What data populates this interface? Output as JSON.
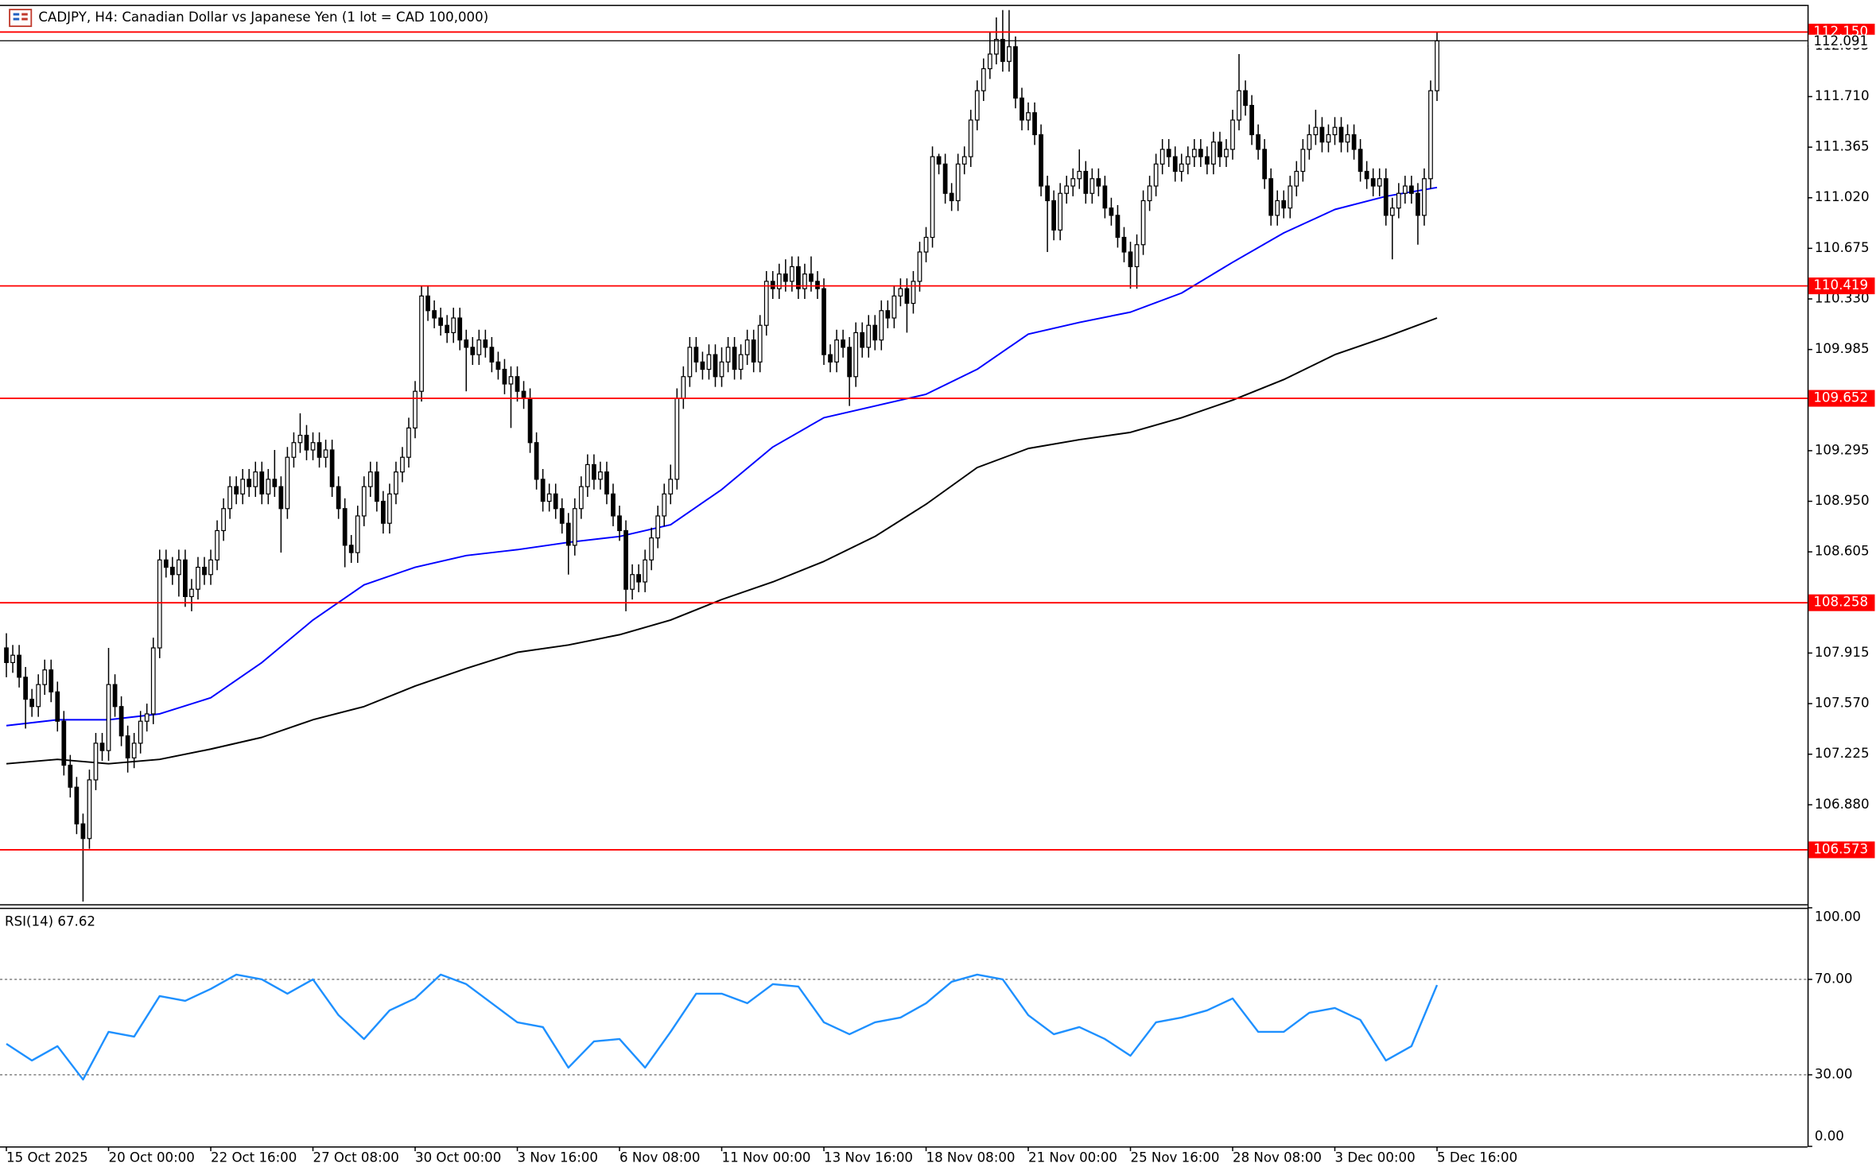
{
  "chart_data": {
    "type": "candlestick",
    "title": "CADJPY, H4:  Canadian Dollar vs Japanese Yen (1 lot = CAD 100,000)",
    "bull_color": "#ffffff",
    "bear_color": "#000000",
    "open": [
      107.95,
      107.85,
      107.9,
      107.75,
      107.6,
      107.55,
      107.7,
      107.8,
      107.65,
      107.45,
      107.15,
      107.0,
      106.75,
      106.65,
      107.05,
      107.3,
      107.25,
      107.7,
      107.55,
      107.35,
      107.2,
      107.3,
      107.45,
      107.5,
      107.95,
      108.55,
      108.5,
      108.45,
      108.55,
      108.3,
      108.35,
      108.5,
      108.45,
      108.55,
      108.75,
      108.9,
      109.05,
      109.0,
      109.1,
      109.05,
      109.15,
      109.0,
      109.1,
      109.05,
      108.9,
      109.25,
      109.35,
      109.4,
      109.3,
      109.35,
      109.25,
      109.3,
      109.05,
      108.9,
      108.65,
      108.6,
      108.85,
      109.05,
      109.15,
      108.95,
      108.8,
      109.0,
      109.15,
      109.25,
      109.45,
      109.7,
      110.35,
      110.25,
      110.2,
      110.15,
      110.1,
      110.2,
      110.05,
      110.0,
      109.95,
      110.05,
      110.0,
      109.9,
      109.85,
      109.75,
      109.8,
      109.7,
      109.65,
      109.35,
      109.1,
      108.95,
      109.0,
      108.9,
      108.8,
      108.65,
      108.9,
      109.05,
      109.2,
      109.1,
      109.15,
      109.0,
      108.85,
      108.75,
      108.35,
      108.45,
      108.4,
      108.55,
      108.7,
      108.85,
      109.0,
      109.1,
      109.65,
      109.8,
      110.0,
      109.9,
      109.85,
      109.95,
      109.8,
      109.9,
      110.0,
      109.85,
      109.95,
      110.05,
      109.9,
      110.15,
      110.45,
      110.4,
      110.5,
      110.45,
      110.55,
      110.4,
      110.5,
      110.45,
      110.4,
      109.95,
      109.9,
      110.05,
      110.0,
      109.8,
      110.1,
      110.0,
      110.15,
      110.05,
      110.25,
      110.2,
      110.35,
      110.4,
      110.3,
      110.45,
      110.65,
      110.75,
      111.3,
      111.25,
      111.05,
      111.0,
      111.25,
      111.3,
      111.55,
      111.75,
      111.9,
      112.0,
      112.1,
      111.95,
      112.05,
      111.7,
      111.55,
      111.6,
      111.45,
      111.1,
      111.0,
      110.8,
      111.05,
      111.1,
      111.15,
      111.2,
      111.05,
      111.15,
      111.1,
      110.95,
      110.9,
      110.75,
      110.65,
      110.55,
      110.7,
      111.0,
      111.1,
      111.25,
      111.35,
      111.3,
      111.2,
      111.25,
      111.3,
      111.35,
      111.3,
      111.25,
      111.4,
      111.3,
      111.35,
      111.55,
      111.75,
      111.65,
      111.45,
      111.35,
      111.15,
      110.9,
      111.0,
      110.95,
      111.1,
      111.2,
      111.35,
      111.45,
      111.5,
      111.4,
      111.45,
      111.5,
      111.4,
      111.45,
      111.35,
      111.2,
      111.15,
      111.1,
      111.15,
      110.9,
      110.95,
      111.05,
      111.1,
      111.05,
      110.9,
      111.15,
      111.75
    ],
    "high": [
      108.05,
      107.97,
      107.97,
      107.82,
      107.67,
      107.77,
      107.87,
      107.87,
      107.72,
      107.52,
      107.22,
      107.07,
      106.82,
      107.12,
      107.37,
      107.37,
      107.95,
      107.77,
      107.62,
      107.42,
      107.37,
      107.52,
      107.57,
      108.02,
      108.62,
      108.62,
      108.57,
      108.62,
      108.62,
      108.42,
      108.57,
      108.57,
      108.62,
      108.82,
      108.97,
      109.12,
      109.12,
      109.17,
      109.17,
      109.22,
      109.22,
      109.17,
      109.3,
      109.12,
      109.32,
      109.42,
      109.55,
      109.47,
      109.42,
      109.42,
      109.37,
      109.37,
      109.12,
      108.97,
      108.72,
      108.92,
      109.12,
      109.22,
      109.22,
      109.02,
      109.07,
      109.22,
      109.32,
      109.52,
      109.77,
      110.42,
      110.42,
      110.32,
      110.27,
      110.22,
      110.27,
      110.27,
      110.12,
      110.07,
      110.12,
      110.12,
      110.07,
      109.97,
      109.92,
      109.87,
      109.87,
      109.77,
      109.72,
      109.42,
      109.17,
      109.07,
      109.07,
      108.97,
      108.87,
      108.97,
      109.12,
      109.27,
      109.27,
      109.22,
      109.22,
      109.07,
      108.92,
      108.82,
      108.52,
      108.52,
      108.62,
      108.77,
      108.92,
      109.07,
      109.2,
      109.72,
      109.87,
      110.07,
      110.07,
      109.97,
      110.02,
      110.02,
      110.0,
      110.07,
      110.07,
      110.02,
      110.12,
      110.12,
      110.22,
      110.52,
      110.52,
      110.57,
      110.6,
      110.62,
      110.62,
      110.57,
      110.62,
      110.52,
      110.47,
      110.02,
      110.12,
      110.12,
      110.07,
      110.17,
      110.17,
      110.22,
      110.22,
      110.32,
      110.32,
      110.42,
      110.47,
      110.47,
      110.52,
      110.72,
      110.82,
      111.37,
      111.32,
      111.32,
      111.12,
      111.32,
      111.37,
      111.62,
      111.82,
      111.97,
      112.15,
      112.25,
      112.3,
      112.3,
      112.12,
      111.77,
      111.67,
      111.67,
      111.52,
      111.17,
      111.07,
      111.12,
      111.17,
      111.22,
      111.35,
      111.27,
      111.22,
      111.22,
      111.17,
      111.02,
      110.97,
      110.82,
      110.72,
      110.77,
      111.07,
      111.17,
      111.32,
      111.42,
      111.42,
      111.37,
      111.32,
      111.37,
      111.42,
      111.42,
      111.37,
      111.47,
      111.47,
      111.42,
      111.62,
      112.0,
      111.82,
      111.72,
      111.52,
      111.42,
      111.22,
      111.07,
      111.07,
      111.17,
      111.27,
      111.42,
      111.52,
      111.62,
      111.57,
      111.52,
      111.57,
      111.57,
      111.52,
      111.52,
      111.42,
      111.27,
      111.22,
      111.22,
      111.22,
      111.02,
      111.12,
      111.17,
      111.17,
      111.12,
      111.22,
      111.82,
      112.15
    ],
    "low": [
      107.75,
      107.78,
      107.68,
      107.4,
      107.48,
      107.48,
      107.63,
      107.58,
      107.38,
      107.08,
      106.93,
      106.68,
      106.22,
      106.58,
      106.98,
      107.18,
      107.18,
      107.48,
      107.28,
      107.1,
      107.13,
      107.23,
      107.38,
      107.43,
      107.88,
      108.43,
      108.38,
      108.3,
      108.23,
      108.2,
      108.28,
      108.38,
      108.38,
      108.48,
      108.68,
      108.83,
      108.93,
      108.93,
      108.98,
      108.98,
      108.93,
      108.93,
      108.98,
      108.6,
      108.83,
      109.18,
      109.28,
      109.23,
      109.23,
      109.18,
      109.18,
      108.98,
      108.83,
      108.5,
      108.53,
      108.53,
      108.78,
      108.98,
      108.88,
      108.73,
      108.73,
      108.93,
      109.08,
      109.18,
      109.38,
      109.63,
      110.18,
      110.13,
      110.08,
      110.03,
      110.03,
      109.98,
      109.7,
      109.88,
      109.88,
      109.93,
      109.83,
      109.78,
      109.68,
      109.45,
      109.63,
      109.58,
      109.28,
      109.03,
      108.88,
      108.88,
      108.83,
      108.73,
      108.45,
      108.58,
      108.83,
      108.98,
      109.03,
      109.03,
      108.93,
      108.78,
      108.68,
      108.2,
      108.28,
      108.33,
      108.33,
      108.48,
      108.63,
      108.78,
      108.93,
      109.03,
      109.58,
      109.73,
      109.83,
      109.78,
      109.78,
      109.73,
      109.73,
      109.83,
      109.78,
      109.78,
      109.88,
      109.83,
      109.83,
      110.08,
      110.33,
      110.33,
      110.38,
      110.38,
      110.33,
      110.33,
      110.38,
      110.33,
      109.88,
      109.83,
      109.83,
      109.93,
      109.6,
      109.73,
      109.93,
      109.93,
      109.98,
      109.98,
      110.13,
      110.13,
      110.28,
      110.1,
      110.23,
      110.38,
      110.58,
      110.68,
      111.18,
      110.98,
      110.93,
      110.93,
      111.18,
      111.23,
      111.48,
      111.68,
      111.83,
      111.93,
      111.88,
      111.88,
      111.63,
      111.48,
      111.48,
      111.38,
      111.03,
      110.65,
      110.73,
      110.73,
      110.98,
      111.03,
      111.08,
      110.98,
      110.98,
      111.03,
      110.88,
      110.83,
      110.68,
      110.58,
      110.4,
      110.4,
      110.63,
      110.93,
      111.03,
      111.18,
      111.23,
      111.13,
      111.13,
      111.18,
      111.23,
      111.23,
      111.18,
      111.18,
      111.23,
      111.23,
      111.28,
      111.48,
      111.58,
      111.38,
      111.28,
      111.08,
      110.83,
      110.83,
      110.88,
      110.88,
      111.03,
      111.13,
      111.28,
      111.38,
      111.33,
      111.33,
      111.38,
      111.33,
      111.33,
      111.28,
      111.13,
      111.08,
      111.03,
      111.03,
      110.83,
      110.6,
      110.88,
      110.98,
      110.98,
      110.7,
      110.83,
      111.08,
      111.68
    ],
    "close": [
      107.85,
      107.9,
      107.75,
      107.6,
      107.55,
      107.7,
      107.8,
      107.65,
      107.45,
      107.15,
      107.0,
      106.75,
      106.65,
      107.05,
      107.3,
      107.25,
      107.7,
      107.55,
      107.35,
      107.2,
      107.3,
      107.45,
      107.5,
      107.95,
      108.55,
      108.5,
      108.45,
      108.55,
      108.3,
      108.35,
      108.5,
      108.45,
      108.55,
      108.75,
      108.9,
      109.05,
      109.0,
      109.1,
      109.05,
      109.15,
      109.0,
      109.1,
      109.05,
      108.9,
      109.25,
      109.35,
      109.4,
      109.3,
      109.35,
      109.25,
      109.3,
      109.05,
      108.9,
      108.65,
      108.6,
      108.85,
      109.05,
      109.15,
      108.95,
      108.8,
      109.0,
      109.15,
      109.25,
      109.45,
      109.7,
      110.35,
      110.25,
      110.2,
      110.15,
      110.1,
      110.2,
      110.05,
      110.0,
      109.95,
      110.05,
      110.0,
      109.9,
      109.85,
      109.75,
      109.8,
      109.7,
      109.65,
      109.35,
      109.1,
      108.95,
      109.0,
      108.9,
      108.8,
      108.65,
      108.9,
      109.05,
      109.2,
      109.1,
      109.15,
      109.0,
      108.85,
      108.75,
      108.35,
      108.45,
      108.4,
      108.55,
      108.7,
      108.85,
      109.0,
      109.1,
      109.65,
      109.8,
      110.0,
      109.9,
      109.85,
      109.95,
      109.8,
      109.9,
      110.0,
      109.85,
      109.95,
      110.05,
      109.9,
      110.15,
      110.45,
      110.4,
      110.5,
      110.45,
      110.55,
      110.4,
      110.5,
      110.45,
      110.4,
      109.95,
      109.9,
      110.05,
      110.0,
      109.8,
      110.1,
      110.0,
      110.15,
      110.05,
      110.25,
      110.2,
      110.35,
      110.4,
      110.3,
      110.45,
      110.65,
      110.75,
      111.3,
      111.25,
      111.05,
      111.0,
      111.25,
      111.3,
      111.55,
      111.75,
      111.9,
      112.0,
      112.1,
      111.95,
      112.05,
      111.7,
      111.55,
      111.6,
      111.45,
      111.1,
      111.0,
      110.8,
      111.05,
      111.1,
      111.15,
      111.2,
      111.05,
      111.15,
      111.1,
      110.95,
      110.9,
      110.75,
      110.65,
      110.55,
      110.7,
      111.0,
      111.1,
      111.25,
      111.35,
      111.3,
      111.2,
      111.25,
      111.3,
      111.35,
      111.3,
      111.25,
      111.4,
      111.3,
      111.35,
      111.55,
      111.75,
      111.65,
      111.45,
      111.35,
      111.15,
      110.9,
      111.0,
      110.95,
      111.1,
      111.2,
      111.35,
      111.45,
      111.5,
      111.4,
      111.45,
      111.5,
      111.4,
      111.45,
      111.35,
      111.2,
      111.15,
      111.1,
      111.15,
      110.9,
      110.95,
      111.05,
      111.1,
      111.05,
      110.9,
      111.15,
      111.75,
      112.091
    ],
    "xlim": [
      -1,
      282
    ],
    "xticks": [
      {
        "value": 0,
        "label": "15 Oct 2025"
      },
      {
        "value": 16,
        "label": "20 Oct 00:00"
      },
      {
        "value": 32,
        "label": "22 Oct 16:00"
      },
      {
        "value": 48,
        "label": "27 Oct 08:00"
      },
      {
        "value": 64,
        "label": "30 Oct 00:00"
      },
      {
        "value": 80,
        "label": "3 Nov 16:00"
      },
      {
        "value": 96,
        "label": "6 Nov 08:00"
      },
      {
        "value": 112,
        "label": "11 Nov 00:00"
      },
      {
        "value": 128,
        "label": "13 Nov 16:00"
      },
      {
        "value": 144,
        "label": "18 Nov 08:00"
      },
      {
        "value": 160,
        "label": "21 Nov 00:00"
      },
      {
        "value": 176,
        "label": "25 Nov 16:00"
      },
      {
        "value": 192,
        "label": "28 Nov 08:00"
      },
      {
        "value": 208,
        "label": "3 Dec 00:00"
      },
      {
        "value": 224,
        "label": "5 Dec 16:00"
      }
    ],
    "ylim": [
      106.202,
      112.328
    ],
    "yticks": [
      112.055,
      {
        "value": 111.71,
        "label": "111.710"
      },
      111.365,
      {
        "value": 111.02,
        "label": "111.020"
      },
      110.675,
      {
        "value": 110.33,
        "label": "110.330"
      },
      109.985,
      109.295,
      {
        "value": 108.95,
        "label": "108.950"
      },
      108.605,
      107.915,
      {
        "value": 107.57,
        "label": "107.570"
      },
      107.225,
      {
        "value": 106.88,
        "label": "106.880"
      }
    ],
    "overlays": [
      {
        "color": "#0000ff",
        "x": [
          0,
          8,
          16,
          24,
          32,
          40,
          48,
          56,
          64,
          72,
          80,
          88,
          96,
          104,
          112,
          120,
          128,
          136,
          144,
          152,
          160,
          168,
          176,
          184,
          192,
          200,
          208,
          216,
          224
        ],
        "values": [
          107.42,
          107.46,
          107.46,
          107.5,
          107.61,
          107.85,
          108.14,
          108.38,
          108.5,
          108.58,
          108.62,
          108.67,
          108.71,
          108.79,
          109.03,
          109.32,
          109.52,
          109.6,
          109.68,
          109.85,
          110.09,
          110.17,
          110.24,
          110.37,
          110.58,
          110.78,
          110.94,
          111.03,
          111.09
        ]
      },
      {
        "color": "#000000",
        "x": [
          0,
          8,
          16,
          24,
          32,
          40,
          48,
          56,
          64,
          72,
          80,
          88,
          96,
          104,
          112,
          120,
          128,
          136,
          144,
          152,
          160,
          168,
          176,
          184,
          192,
          200,
          208,
          216,
          224
        ],
        "values": [
          107.16,
          107.19,
          107.16,
          107.19,
          107.26,
          107.34,
          107.46,
          107.55,
          107.69,
          107.81,
          107.92,
          107.97,
          108.04,
          108.14,
          108.28,
          108.4,
          108.54,
          108.71,
          108.93,
          109.18,
          109.31,
          109.37,
          109.42,
          109.52,
          109.64,
          109.78,
          109.95,
          110.07,
          110.2
        ]
      }
    ],
    "level_color": "#ff0000",
    "price_levels": [
      {
        "value": 112.15,
        "label": "112.150"
      },
      110.419,
      109.652,
      108.258,
      106.573
    ],
    "last_price": 112.091,
    "rsi": {
      "label": "RSI(14) 67.62",
      "color": "#1e90ff",
      "ylim": [
        0,
        100
      ],
      "yticks": [
        {
          "value": 100,
          "label": "100.00"
        },
        {
          "value": 70,
          "label": "70.00"
        },
        {
          "value": 30,
          "label": "30.00"
        },
        {
          "value": 0,
          "label": "0.00"
        }
      ],
      "levels": [
        70,
        30
      ],
      "x": [
        0,
        4,
        8,
        12,
        16,
        20,
        24,
        28,
        32,
        36,
        40,
        44,
        48,
        52,
        56,
        60,
        64,
        68,
        72,
        76,
        80,
        84,
        88,
        92,
        96,
        100,
        104,
        108,
        112,
        116,
        120,
        124,
        128,
        132,
        136,
        140,
        144,
        148,
        152,
        156,
        160,
        164,
        168,
        172,
        176,
        180,
        184,
        188,
        192,
        196,
        200,
        204,
        208,
        212,
        216,
        220,
        224
      ],
      "values": [
        43,
        36,
        42,
        28,
        48,
        46,
        63,
        61,
        66,
        72,
        70,
        64,
        70,
        55,
        45,
        57,
        62,
        72,
        68,
        60,
        52,
        50,
        33,
        44,
        45,
        33,
        48,
        64,
        64,
        60,
        68,
        67,
        52,
        47,
        52,
        54,
        60,
        69,
        72,
        70,
        55,
        47,
        50,
        45,
        38,
        52,
        54,
        57,
        62,
        48,
        48,
        56,
        58,
        53,
        36,
        42,
        67.62
      ]
    }
  }
}
